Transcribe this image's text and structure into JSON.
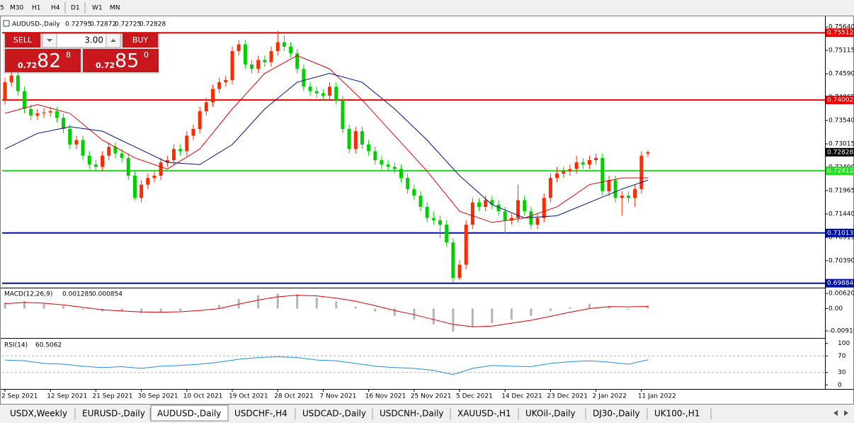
{
  "toolbar": {
    "timeframes": [
      "5",
      "M30",
      "H1",
      "H4",
      "D1",
      "W1",
      "MN"
    ]
  },
  "trade_panel": {
    "sell": "SELL",
    "buy": "BUY",
    "volume": "3.00",
    "bid": {
      "prefix": "0.72",
      "big": "82",
      "small": "8"
    },
    "ask": {
      "prefix": "0.72",
      "big": "85",
      "small": "0"
    }
  },
  "chart_data": [
    {
      "type": "candlestick",
      "title": "AUDUSD-,Daily",
      "up_color": "#ff2a00",
      "down_color": "#00d000",
      "categories": [
        "2 Sep 2021",
        null,
        null,
        null,
        null,
        null,
        null,
        "12 Sep 2021",
        null,
        null,
        null,
        null,
        null,
        null,
        "21 Sep 2021",
        null,
        null,
        null,
        null,
        null,
        null,
        "30 Sep 2021",
        null,
        null,
        null,
        null,
        null,
        null,
        "10 Oct 2021",
        null,
        null,
        null,
        null,
        null,
        null,
        "19 Oct 2021",
        null,
        null,
        null,
        null,
        null,
        null,
        "28 Oct 2021",
        null,
        null,
        null,
        null,
        null,
        null,
        "7 Nov 2021",
        null,
        null,
        null,
        null,
        null,
        null,
        "16 Nov 2021",
        null,
        null,
        null,
        null,
        null,
        null,
        "25 Nov 2021",
        null,
        null,
        null,
        null,
        null,
        null,
        "5 Dec 2021",
        null,
        null,
        null,
        null,
        null,
        null,
        "14 Dec 2021",
        null,
        null,
        null,
        null,
        null,
        null,
        "23 Dec 2021",
        null,
        null,
        null,
        null,
        null,
        null,
        "2 Jan 2022",
        null,
        null,
        null,
        null,
        null,
        null,
        "11 Jan 2022",
        null
      ],
      "candles": [
        [
          0.74,
          0.745,
          0.739,
          0.744
        ],
        [
          0.744,
          0.7465,
          0.743,
          0.7455
        ],
        [
          0.7455,
          0.7465,
          0.741,
          0.742
        ],
        [
          0.742,
          0.743,
          0.737,
          0.738
        ],
        [
          0.738,
          0.739,
          0.7355,
          0.7365
        ],
        [
          0.7365,
          0.738,
          0.7355,
          0.737
        ],
        [
          0.737,
          0.7382,
          0.736,
          0.7372
        ],
        [
          0.7372,
          0.7385,
          0.7362,
          0.7375
        ],
        [
          0.7375,
          0.7385,
          0.735,
          0.736
        ],
        [
          0.736,
          0.737,
          0.7325,
          0.7335
        ],
        [
          0.7335,
          0.7345,
          0.729,
          0.73
        ],
        [
          0.73,
          0.732,
          0.729,
          0.731
        ],
        [
          0.731,
          0.732,
          0.7265,
          0.7275
        ],
        [
          0.7275,
          0.7285,
          0.7245,
          0.7255
        ],
        [
          0.7255,
          0.7265,
          0.724,
          0.725
        ],
        [
          0.725,
          0.7285,
          0.724,
          0.7275
        ],
        [
          0.7275,
          0.7305,
          0.7265,
          0.7295
        ],
        [
          0.7295,
          0.7305,
          0.727,
          0.728
        ],
        [
          0.728,
          0.729,
          0.726,
          0.727
        ],
        [
          0.727,
          0.728,
          0.722,
          0.723
        ],
        [
          0.723,
          0.724,
          0.7175,
          0.718
        ],
        [
          0.718,
          0.722,
          0.717,
          0.721
        ],
        [
          0.721,
          0.7235,
          0.72,
          0.7225
        ],
        [
          0.7225,
          0.724,
          0.7215,
          0.723
        ],
        [
          0.723,
          0.727,
          0.722,
          0.726
        ],
        [
          0.726,
          0.7275,
          0.725,
          0.7265
        ],
        [
          0.7265,
          0.73,
          0.7255,
          0.729
        ],
        [
          0.729,
          0.73,
          0.7275,
          0.7285
        ],
        [
          0.7285,
          0.733,
          0.7275,
          0.732
        ],
        [
          0.732,
          0.7345,
          0.731,
          0.7335
        ],
        [
          0.7335,
          0.7385,
          0.7325,
          0.7375
        ],
        [
          0.7375,
          0.7405,
          0.7365,
          0.7395
        ],
        [
          0.7395,
          0.7435,
          0.7385,
          0.7425
        ],
        [
          0.7425,
          0.745,
          0.7415,
          0.744
        ],
        [
          0.744,
          0.7455,
          0.743,
          0.7445
        ],
        [
          0.7445,
          0.752,
          0.7435,
          0.751
        ],
        [
          0.751,
          0.7535,
          0.75,
          0.7525
        ],
        [
          0.7525,
          0.7535,
          0.747,
          0.748
        ],
        [
          0.748,
          0.749,
          0.746,
          0.747
        ],
        [
          0.747,
          0.75,
          0.746,
          0.749
        ],
        [
          0.749,
          0.75,
          0.7475,
          0.7485
        ],
        [
          0.7485,
          0.752,
          0.7475,
          0.751
        ],
        [
          0.751,
          0.7556,
          0.75,
          0.753
        ],
        [
          0.753,
          0.7545,
          0.751,
          0.752
        ],
        [
          0.752,
          0.753,
          0.7495,
          0.7505
        ],
        [
          0.7505,
          0.7515,
          0.746,
          0.747
        ],
        [
          0.747,
          0.748,
          0.742,
          0.743
        ],
        [
          0.743,
          0.744,
          0.741,
          0.742
        ],
        [
          0.742,
          0.743,
          0.7405,
          0.7415
        ],
        [
          0.7415,
          0.7425,
          0.74,
          0.741
        ],
        [
          0.741,
          0.744,
          0.74,
          0.743
        ],
        [
          0.743,
          0.744,
          0.739,
          0.74
        ],
        [
          0.74,
          0.741,
          0.7325,
          0.7335
        ],
        [
          0.7335,
          0.7345,
          0.728,
          0.729
        ],
        [
          0.729,
          0.734,
          0.728,
          0.733
        ],
        [
          0.733,
          0.734,
          0.729,
          0.73
        ],
        [
          0.73,
          0.731,
          0.7275,
          0.7285
        ],
        [
          0.7285,
          0.7295,
          0.7255,
          0.7265
        ],
        [
          0.7265,
          0.7275,
          0.7245,
          0.7255
        ],
        [
          0.7255,
          0.7265,
          0.724,
          0.725
        ],
        [
          0.725,
          0.726,
          0.7235,
          0.7245
        ],
        [
          0.7245,
          0.7255,
          0.7215,
          0.7225
        ],
        [
          0.7225,
          0.7235,
          0.719,
          0.72
        ],
        [
          0.72,
          0.721,
          0.7175,
          0.7185
        ],
        [
          0.7185,
          0.7195,
          0.715,
          0.716
        ],
        [
          0.716,
          0.717,
          0.7125,
          0.7135
        ],
        [
          0.7135,
          0.715,
          0.712,
          0.713
        ],
        [
          0.713,
          0.714,
          0.709,
          0.712
        ],
        [
          0.712,
          0.713,
          0.707,
          0.708
        ],
        [
          0.708,
          0.709,
          0.699,
          0.7
        ],
        [
          0.7,
          0.704,
          0.6995,
          0.703
        ],
        [
          0.703,
          0.713,
          0.702,
          0.712
        ],
        [
          0.712,
          0.718,
          0.711,
          0.717
        ],
        [
          0.717,
          0.718,
          0.715,
          0.716
        ],
        [
          0.716,
          0.7185,
          0.715,
          0.7175
        ],
        [
          0.7175,
          0.7185,
          0.7155,
          0.7165
        ],
        [
          0.7165,
          0.7175,
          0.714,
          0.715
        ],
        [
          0.715,
          0.716,
          0.71,
          0.713
        ],
        [
          0.713,
          0.7145,
          0.712,
          0.7135
        ],
        [
          0.7135,
          0.721,
          0.7125,
          0.7175
        ],
        [
          0.7175,
          0.7185,
          0.714,
          0.715
        ],
        [
          0.715,
          0.716,
          0.711,
          0.712
        ],
        [
          0.712,
          0.7145,
          0.711,
          0.7135
        ],
        [
          0.7135,
          0.719,
          0.7125,
          0.718
        ],
        [
          0.718,
          0.7235,
          0.717,
          0.7225
        ],
        [
          0.7225,
          0.725,
          0.7215,
          0.7235
        ],
        [
          0.7235,
          0.725,
          0.7225,
          0.724
        ],
        [
          0.724,
          0.7255,
          0.723,
          0.7245
        ],
        [
          0.7245,
          0.7275,
          0.7235,
          0.726
        ],
        [
          0.726,
          0.727,
          0.7245,
          0.7255
        ],
        [
          0.7255,
          0.7275,
          0.7245,
          0.7265
        ],
        [
          0.7265,
          0.728,
          0.7255,
          0.727
        ],
        [
          0.727,
          0.728,
          0.7185,
          0.7195
        ],
        [
          0.7195,
          0.723,
          0.7185,
          0.722
        ],
        [
          0.722,
          0.723,
          0.717,
          0.718
        ],
        [
          0.718,
          0.7195,
          0.714,
          0.7185
        ],
        [
          0.7185,
          0.7195,
          0.717,
          0.718
        ],
        [
          0.718,
          0.721,
          0.716,
          0.72
        ],
        [
          0.72,
          0.7285,
          0.719,
          0.7275
        ],
        [
          0.72795,
          0.72872,
          0.72725,
          0.72828
        ]
      ],
      "series": [
        {
          "color": "#e00000",
          "x": [
            0,
            5,
            10,
            15,
            20,
            25,
            30,
            35,
            40,
            45,
            50,
            55,
            60,
            65,
            70,
            75,
            80,
            85,
            90,
            95,
            99
          ],
          "values": [
            0.737,
            0.739,
            0.737,
            0.731,
            0.727,
            0.7245,
            0.729,
            0.738,
            0.746,
            0.75,
            0.747,
            0.74,
            0.732,
            0.724,
            0.715,
            0.7125,
            0.7135,
            0.716,
            0.721,
            0.7225,
            0.7225
          ]
        },
        {
          "color": "#00108c",
          "x": [
            0,
            5,
            10,
            15,
            20,
            25,
            30,
            35,
            40,
            45,
            50,
            55,
            60,
            65,
            70,
            75,
            80,
            85,
            90,
            95,
            99
          ],
          "values": [
            0.729,
            0.7325,
            0.734,
            0.733,
            0.7295,
            0.726,
            0.7255,
            0.73,
            0.738,
            0.744,
            0.746,
            0.744,
            0.738,
            0.731,
            0.723,
            0.7165,
            0.7135,
            0.714,
            0.717,
            0.72,
            0.722
          ]
        }
      ],
      "hlines": [
        {
          "value": 0.75512,
          "color": "#f00000"
        },
        {
          "value": 0.74002,
          "color": "#f00000"
        },
        {
          "value": 0.72412,
          "color": "#20e020"
        },
        {
          "value": 0.71013,
          "color": "#0010a0"
        },
        {
          "value": 0.69884,
          "color": "#0010a0"
        }
      ],
      "current_price": 0.72828,
      "ylim": [
        0.698,
        0.7585
      ],
      "yticks": [
        {
          "value": 0.7564,
          "label": "0.75640"
        },
        {
          "value": 0.75115,
          "label": "0.75115"
        },
        {
          "value": 0.7459,
          "label": "0.74590"
        },
        {
          "value": 0.74065,
          "label": "0.74065"
        },
        {
          "value": 0.7354,
          "label": "0.73540"
        },
        {
          "value": 0.73015,
          "label": "0.73015"
        },
        {
          "value": 0.7249,
          "label": "0.72490"
        },
        {
          "value": 0.71965,
          "label": "0.71965"
        },
        {
          "value": 0.7144,
          "label": "0.71440"
        },
        {
          "value": 0.70915,
          "label": "0.70915"
        },
        {
          "value": 0.7039,
          "label": "0.70390"
        }
      ]
    },
    {
      "type": "macd",
      "title": "MACD(12,26,9)",
      "x": [
        0,
        3,
        6,
        9,
        12,
        15,
        18,
        21,
        24,
        27,
        30,
        33,
        36,
        39,
        42,
        45,
        48,
        51,
        54,
        57,
        60,
        63,
        66,
        69,
        72,
        75,
        78,
        81,
        84,
        87,
        90,
        93,
        96,
        99
      ],
      "series": [
        {
          "color": "#b4b4b4",
          "values": [
            0.0025,
            0.003,
            0.002,
            0.001,
            -0.0005,
            -0.0012,
            -0.0012,
            -0.0018,
            -0.0015,
            -0.001,
            0.0,
            0.0015,
            0.004,
            0.0055,
            0.0062,
            0.0058,
            0.0045,
            0.003,
            0.0008,
            -0.0012,
            -0.003,
            -0.0045,
            -0.0065,
            -0.0095,
            -0.0075,
            -0.006,
            -0.0045,
            -0.003,
            -0.001,
            0.0005,
            0.002,
            0.001,
            -0.0005,
            0.001285
          ]
        },
        {
          "color": "#e00000",
          "values": [
            0.002,
            0.0025,
            0.0022,
            0.0015,
            0.0005,
            -0.0005,
            -0.001,
            -0.0014,
            -0.0015,
            -0.0013,
            -0.0008,
            0.0,
            0.0018,
            0.0035,
            0.0048,
            0.0055,
            0.0052,
            0.0043,
            0.003,
            0.0012,
            -0.0008,
            -0.0025,
            -0.0045,
            -0.0065,
            -0.0075,
            -0.0072,
            -0.006,
            -0.0048,
            -0.0032,
            -0.0015,
            0.0,
            0.0008,
            0.0007,
            0.000854
          ]
        }
      ],
      "ylim": [
        -0.0118,
        0.008
      ],
      "yticks": [
        0.006201,
        {
          "value": 0,
          "label": "0.00"
        },
        -0.00919
      ]
    },
    {
      "type": "rsi",
      "title": "RSI(14)",
      "x": [
        0,
        3,
        6,
        9,
        12,
        15,
        18,
        21,
        24,
        27,
        30,
        33,
        36,
        39,
        42,
        45,
        48,
        51,
        54,
        57,
        60,
        63,
        66,
        69,
        72,
        75,
        78,
        81,
        84,
        87,
        90,
        93,
        96,
        99
      ],
      "series": [
        {
          "color": "#1e8ee6",
          "values": [
            60,
            58,
            52,
            50,
            45,
            42,
            44,
            40,
            45,
            47,
            50,
            55,
            62,
            66,
            68,
            66,
            60,
            58,
            52,
            45,
            42,
            40,
            35,
            25,
            40,
            47,
            45,
            44,
            52,
            56,
            58,
            55,
            50,
            60.5062
          ]
        }
      ],
      "ylim": [
        -8,
        108
      ],
      "yticks": [
        100,
        70,
        30,
        0
      ]
    }
  ],
  "tabs": [
    "USDX,Weekly",
    "EURUSD-,Daily",
    "AUDUSD-,Daily",
    "USDCHF-,H4",
    "USDCAD-,Daily",
    "USDCNH-,Daily",
    "XAUUSD-,H1",
    "UKOil-,Daily",
    "DJ30-,Daily",
    "UK100-,H1"
  ],
  "active_tab": "AUDUSD-,Daily"
}
